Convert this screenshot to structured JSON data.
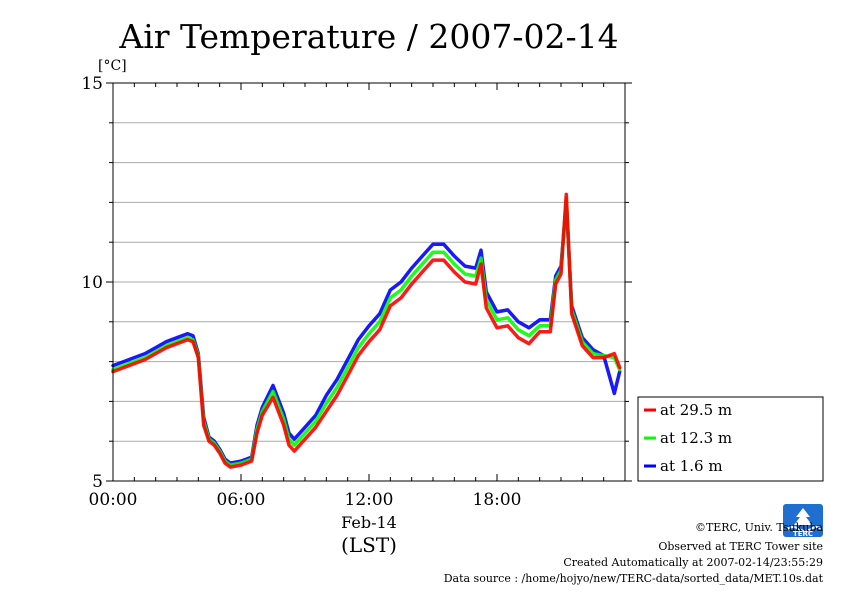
{
  "chart_data": {
    "type": "line",
    "title": "Air Temperature / 2007-02-14",
    "ylabel": "[°C]",
    "xlabel": "(LST)",
    "date_label": "Feb-14",
    "xlim": [
      0,
      24
    ],
    "ylim": [
      5,
      15
    ],
    "x_ticks": [
      {
        "value": 0,
        "label": "00:00"
      },
      {
        "value": 6,
        "label": "06:00"
      },
      {
        "value": 12,
        "label": "12:00"
      },
      {
        "value": 18,
        "label": "18:00"
      }
    ],
    "y_ticks": [
      {
        "value": 5,
        "label": "5"
      },
      {
        "value": 10,
        "label": "10"
      },
      {
        "value": 15,
        "label": "15"
      }
    ],
    "grid": true,
    "legend_position": "right-bottom",
    "x": [
      0,
      0.5,
      1,
      1.5,
      2,
      2.5,
      3,
      3.5,
      3.75,
      4,
      4.25,
      4.5,
      4.75,
      5,
      5.25,
      5.5,
      6,
      6.5,
      6.75,
      7,
      7.5,
      8,
      8.25,
      8.5,
      9,
      9.5,
      10,
      10.5,
      11,
      11.5,
      12,
      12.5,
      13,
      13.5,
      14,
      14.5,
      15,
      15.5,
      16,
      16.5,
      17,
      17.25,
      17.5,
      18,
      18.5,
      19,
      19.5,
      20,
      20.5,
      20.75,
      21,
      21.25,
      21.5,
      22,
      22.5,
      23,
      23.5,
      23.75
    ],
    "series": [
      {
        "name": "at 29.5 m",
        "color": "#ff0000",
        "values": [
          7.75,
          7.85,
          7.95,
          8.05,
          8.2,
          8.35,
          8.45,
          8.55,
          8.5,
          8.1,
          6.4,
          6.0,
          5.9,
          5.7,
          5.45,
          5.35,
          5.4,
          5.5,
          6.2,
          6.65,
          7.1,
          6.4,
          5.9,
          5.75,
          6.05,
          6.35,
          6.75,
          7.15,
          7.65,
          8.15,
          8.5,
          8.8,
          9.4,
          9.6,
          9.95,
          10.25,
          10.55,
          10.55,
          10.25,
          10.0,
          9.95,
          10.45,
          9.35,
          8.85,
          8.9,
          8.6,
          8.45,
          8.75,
          8.75,
          9.95,
          10.2,
          12.2,
          9.2,
          8.4,
          8.1,
          8.1,
          8.2,
          7.85
        ]
      },
      {
        "name": "at 12.3 m",
        "color": "#00ff00",
        "values": [
          7.8,
          7.9,
          8.0,
          8.1,
          8.25,
          8.4,
          8.5,
          8.6,
          8.55,
          8.15,
          6.5,
          6.05,
          5.95,
          5.75,
          5.5,
          5.4,
          5.45,
          5.55,
          6.3,
          6.75,
          7.25,
          6.55,
          6.05,
          5.9,
          6.2,
          6.5,
          6.95,
          7.35,
          7.85,
          8.35,
          8.7,
          9.0,
          9.6,
          9.8,
          10.15,
          10.45,
          10.75,
          10.75,
          10.45,
          10.2,
          10.15,
          10.6,
          9.55,
          9.05,
          9.1,
          8.8,
          8.65,
          8.9,
          8.9,
          10.05,
          10.3,
          12.1,
          9.3,
          8.5,
          8.2,
          8.15,
          8.1,
          7.8
        ]
      },
      {
        "name": "at 1.6 m",
        "color": "#0000ff",
        "values": [
          7.9,
          8.0,
          8.1,
          8.2,
          8.35,
          8.5,
          8.6,
          8.7,
          8.65,
          8.2,
          6.6,
          6.1,
          6.0,
          5.8,
          5.55,
          5.45,
          5.5,
          5.6,
          6.4,
          6.85,
          7.4,
          6.7,
          6.2,
          6.05,
          6.35,
          6.65,
          7.15,
          7.55,
          8.05,
          8.55,
          8.9,
          9.2,
          9.8,
          10.0,
          10.35,
          10.65,
          10.95,
          10.95,
          10.65,
          10.4,
          10.35,
          10.8,
          9.75,
          9.25,
          9.3,
          9.0,
          8.85,
          9.05,
          9.05,
          10.15,
          10.4,
          12.0,
          9.4,
          8.6,
          8.3,
          8.15,
          7.2,
          7.75
        ]
      }
    ]
  },
  "credits": {
    "copyright": "©TERC, Univ. Tsukuba",
    "site": "Observed at TERC Tower site",
    "created": "Created Automatically at 2007-02-14/23:55:29",
    "source": "Data source : /home/hojyo/new/TERC-data/sorted_data/MET.10s.dat"
  },
  "logo": {
    "text": "TERC",
    "color": "#1f6fd0"
  }
}
